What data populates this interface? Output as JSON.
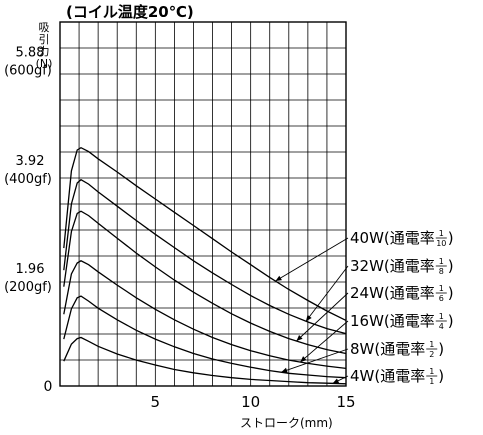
{
  "chart_data": {
    "type": "line",
    "title": "(コイル温度20℃)",
    "ylabel_lines": [
      "吸",
      "引",
      "力",
      "(N)"
    ],
    "xlabel": "ストローク(mm)",
    "xlim": [
      0,
      15
    ],
    "ylim": [
      0,
      6.6
    ],
    "grid": true,
    "x_ticks": [
      {
        "value": 5,
        "label": "5"
      },
      {
        "value": 10,
        "label": "10"
      },
      {
        "value": 15,
        "label": "15"
      }
    ],
    "y_ticks": [
      {
        "value": 0,
        "lines": [
          "0"
        ]
      },
      {
        "value": 1.96,
        "lines": [
          "1.96",
          "(200gf)"
        ]
      },
      {
        "value": 3.92,
        "lines": [
          "3.92",
          "(400gf)"
        ]
      },
      {
        "value": 5.88,
        "lines": [
          "5.88",
          "(600gf)"
        ]
      }
    ],
    "series": [
      {
        "name": "40W",
        "duty_num": "1",
        "duty_den": "10",
        "points": [
          [
            0.2,
            2.5
          ],
          [
            0.6,
            3.9
          ],
          [
            0.9,
            4.28
          ],
          [
            1.1,
            4.32
          ],
          [
            1.5,
            4.25
          ],
          [
            2,
            4.12
          ],
          [
            3,
            3.88
          ],
          [
            4,
            3.63
          ],
          [
            5,
            3.39
          ],
          [
            6,
            3.15
          ],
          [
            7,
            2.91
          ],
          [
            8,
            2.67
          ],
          [
            9,
            2.43
          ],
          [
            10,
            2.2
          ],
          [
            11,
            1.97
          ],
          [
            12,
            1.75
          ],
          [
            13,
            1.55
          ],
          [
            14,
            1.36
          ],
          [
            15,
            1.19
          ]
        ]
      },
      {
        "name": "32W",
        "duty_num": "1",
        "duty_den": "8",
        "points": [
          [
            0.2,
            2.1
          ],
          [
            0.6,
            3.3
          ],
          [
            0.9,
            3.68
          ],
          [
            1.1,
            3.74
          ],
          [
            1.5,
            3.66
          ],
          [
            2,
            3.52
          ],
          [
            3,
            3.26
          ],
          [
            4,
            3.0
          ],
          [
            5,
            2.75
          ],
          [
            6,
            2.51
          ],
          [
            7,
            2.27
          ],
          [
            8,
            2.05
          ],
          [
            9,
            1.84
          ],
          [
            10,
            1.64
          ],
          [
            11,
            1.46
          ],
          [
            12,
            1.3
          ],
          [
            13,
            1.16
          ],
          [
            14,
            1.04
          ],
          [
            15,
            0.95
          ]
        ]
      },
      {
        "name": "24W",
        "duty_num": "1",
        "duty_den": "6",
        "points": [
          [
            0.2,
            1.8
          ],
          [
            0.6,
            2.8
          ],
          [
            0.9,
            3.13
          ],
          [
            1.1,
            3.17
          ],
          [
            1.5,
            3.09
          ],
          [
            2,
            2.95
          ],
          [
            3,
            2.68
          ],
          [
            4,
            2.41
          ],
          [
            5,
            2.16
          ],
          [
            6,
            1.92
          ],
          [
            7,
            1.7
          ],
          [
            8,
            1.5
          ],
          [
            9,
            1.31
          ],
          [
            10,
            1.14
          ],
          [
            11,
            0.99
          ],
          [
            12,
            0.86
          ],
          [
            13,
            0.75
          ],
          [
            14,
            0.66
          ],
          [
            15,
            0.59
          ]
        ]
      },
      {
        "name": "16W",
        "duty_num": "1",
        "duty_den": "4",
        "points": [
          [
            0.2,
            1.3
          ],
          [
            0.6,
            2.03
          ],
          [
            0.9,
            2.23
          ],
          [
            1.1,
            2.27
          ],
          [
            1.5,
            2.2
          ],
          [
            2,
            2.07
          ],
          [
            3,
            1.83
          ],
          [
            4,
            1.6
          ],
          [
            5,
            1.39
          ],
          [
            6,
            1.2
          ],
          [
            7,
            1.03
          ],
          [
            8,
            0.88
          ],
          [
            9,
            0.75
          ],
          [
            10,
            0.64
          ],
          [
            11,
            0.55
          ],
          [
            12,
            0.47
          ],
          [
            13,
            0.41
          ],
          [
            14,
            0.36
          ],
          [
            15,
            0.32
          ]
        ]
      },
      {
        "name": "8W",
        "duty_num": "1",
        "duty_den": "2",
        "points": [
          [
            0.2,
            0.85
          ],
          [
            0.6,
            1.4
          ],
          [
            0.9,
            1.6
          ],
          [
            1.1,
            1.63
          ],
          [
            1.5,
            1.54
          ],
          [
            2,
            1.41
          ],
          [
            3,
            1.2
          ],
          [
            4,
            1.01
          ],
          [
            5,
            0.85
          ],
          [
            6,
            0.71
          ],
          [
            7,
            0.59
          ],
          [
            8,
            0.49
          ],
          [
            9,
            0.41
          ],
          [
            10,
            0.34
          ],
          [
            11,
            0.28
          ],
          [
            12,
            0.23
          ],
          [
            13,
            0.2
          ],
          [
            14,
            0.17
          ],
          [
            15,
            0.15
          ]
        ]
      },
      {
        "name": "4W",
        "duty_num": "1",
        "duty_den": "1",
        "points": [
          [
            0.2,
            0.45
          ],
          [
            0.6,
            0.76
          ],
          [
            0.9,
            0.86
          ],
          [
            1.1,
            0.88
          ],
          [
            1.5,
            0.81
          ],
          [
            2,
            0.72
          ],
          [
            3,
            0.58
          ],
          [
            4,
            0.47
          ],
          [
            5,
            0.38
          ],
          [
            6,
            0.3
          ],
          [
            7,
            0.24
          ],
          [
            8,
            0.19
          ],
          [
            9,
            0.15
          ],
          [
            10,
            0.12
          ],
          [
            11,
            0.1
          ],
          [
            12,
            0.08
          ],
          [
            13,
            0.06
          ],
          [
            14,
            0.05
          ],
          [
            15,
            0.04
          ]
        ]
      }
    ],
    "annotations": [
      {
        "series": "40W",
        "text": "40W(通電率",
        "at_x": 11.3
      },
      {
        "series": "32W",
        "text": "32W(通電率",
        "at_x": 12.9
      },
      {
        "series": "24W",
        "text": "24W(通電率",
        "at_x": 12.4
      },
      {
        "series": "16W",
        "text": "16W(通電率",
        "at_x": 12.6
      },
      {
        "series": "8W",
        "text": "8W(通電率",
        "at_x": 11.6
      },
      {
        "series": "4W",
        "text": "4W(通電率",
        "at_x": 14.3
      }
    ]
  }
}
